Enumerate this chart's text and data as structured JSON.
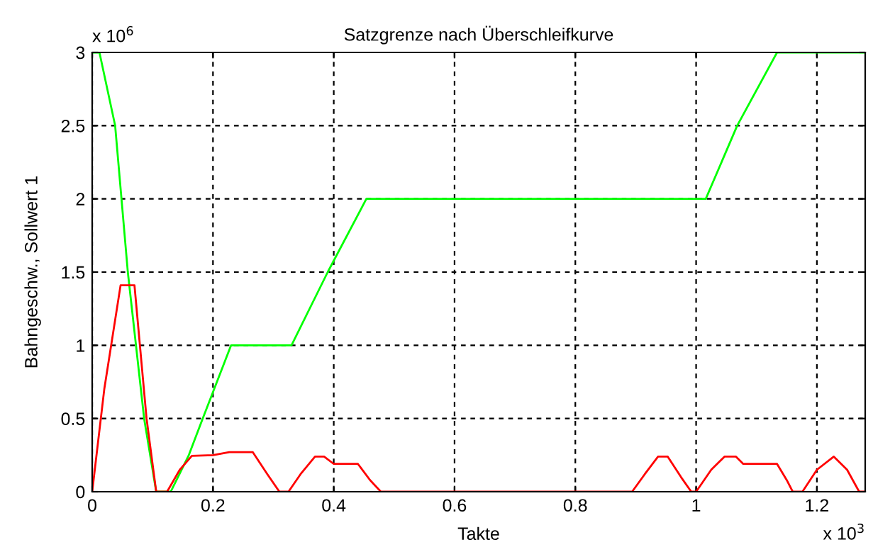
{
  "chart_data": {
    "type": "line",
    "title": "Satzgrenze nach Überschleifkurve",
    "xlabel": "Takte",
    "ylabel": "Bahngeschw., Sollwert 1",
    "annotations": [
      "x 10$^{6}$",
      "x 10$^{3}$"
    ],
    "xlim": [
      0,
      1.28
    ],
    "xticks": [
      0,
      0.2,
      0.4,
      0.6,
      0.8,
      1,
      1.2
    ],
    "ylim": [
      0,
      3
    ],
    "yticks": [
      0,
      0.5,
      1,
      1.5,
      2,
      2.5,
      3
    ],
    "grid": true,
    "legend": false,
    "marker": "none",
    "line_style": "solid",
    "series": [
      {
        "color": "#00ff00",
        "x": [
          0,
          0.012,
          0.038,
          0.059,
          0.086,
          0.106,
          0.13,
          0.16,
          0.183,
          0.23,
          0.33,
          0.39,
          0.454,
          1.016,
          1.068,
          1.134,
          1.28
        ],
        "values": [
          3,
          3,
          2.5,
          1.5,
          0.5,
          0,
          0,
          0.25,
          0.5,
          1,
          1,
          1.5,
          2,
          2,
          2.5,
          3,
          3
        ]
      },
      {
        "color": "#ff0000",
        "x": [
          0,
          0.02,
          0.047,
          0.07,
          0.09,
          0.106,
          0.124,
          0.145,
          0.165,
          0.2,
          0.227,
          0.266,
          0.29,
          0.31,
          0.325,
          0.345,
          0.369,
          0.384,
          0.4,
          0.44,
          0.46,
          0.478,
          0.894,
          0.915,
          0.937,
          0.953,
          0.975,
          0.992,
          1.0,
          1.025,
          1.047,
          1.066,
          1.078,
          1.134,
          1.15,
          1.16,
          1.176,
          1.2,
          1.228,
          1.25,
          1.27,
          1.28
        ],
        "values": [
          0,
          0.7,
          1.41,
          1.41,
          0.5,
          0,
          0,
          0.15,
          0.245,
          0.25,
          0.27,
          0.27,
          0.12,
          0,
          0,
          0.12,
          0.24,
          0.24,
          0.19,
          0.19,
          0.08,
          0,
          0,
          0.12,
          0.24,
          0.24,
          0.1,
          0,
          0,
          0.15,
          0.24,
          0.24,
          0.19,
          0.19,
          0.08,
          0,
          0,
          0.15,
          0.24,
          0.15,
          0,
          0
        ]
      }
    ]
  }
}
